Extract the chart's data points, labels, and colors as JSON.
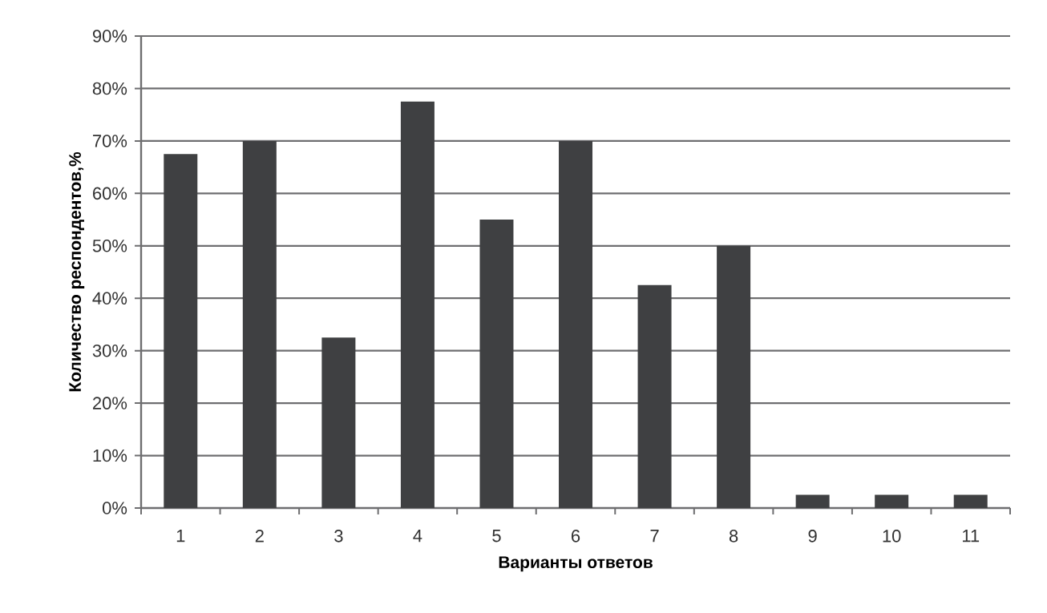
{
  "chart_data": {
    "type": "bar",
    "xlabel": "Варианты ответов",
    "ylabel": "Количество респондентов,%",
    "categories": [
      "1",
      "2",
      "3",
      "4",
      "5",
      "6",
      "7",
      "8",
      "9",
      "10",
      "11"
    ],
    "values": [
      67.5,
      70,
      32.5,
      77.5,
      55,
      70,
      42.5,
      50,
      2.5,
      2.5,
      2.5
    ],
    "color": "#3f4042",
    "ylim": [
      0,
      90
    ],
    "yticks": [
      {
        "value": 0,
        "label": "0%"
      },
      {
        "value": 10,
        "label": "10%"
      },
      {
        "value": 20,
        "label": "20%"
      },
      {
        "value": 30,
        "label": "30%"
      },
      {
        "value": 40,
        "label": "40%"
      },
      {
        "value": 50,
        "label": "50%"
      },
      {
        "value": 60,
        "label": "60%"
      },
      {
        "value": 70,
        "label": "70%"
      },
      {
        "value": 80,
        "label": "80%"
      },
      {
        "value": 90,
        "label": "90%"
      }
    ],
    "grid": "y"
  }
}
